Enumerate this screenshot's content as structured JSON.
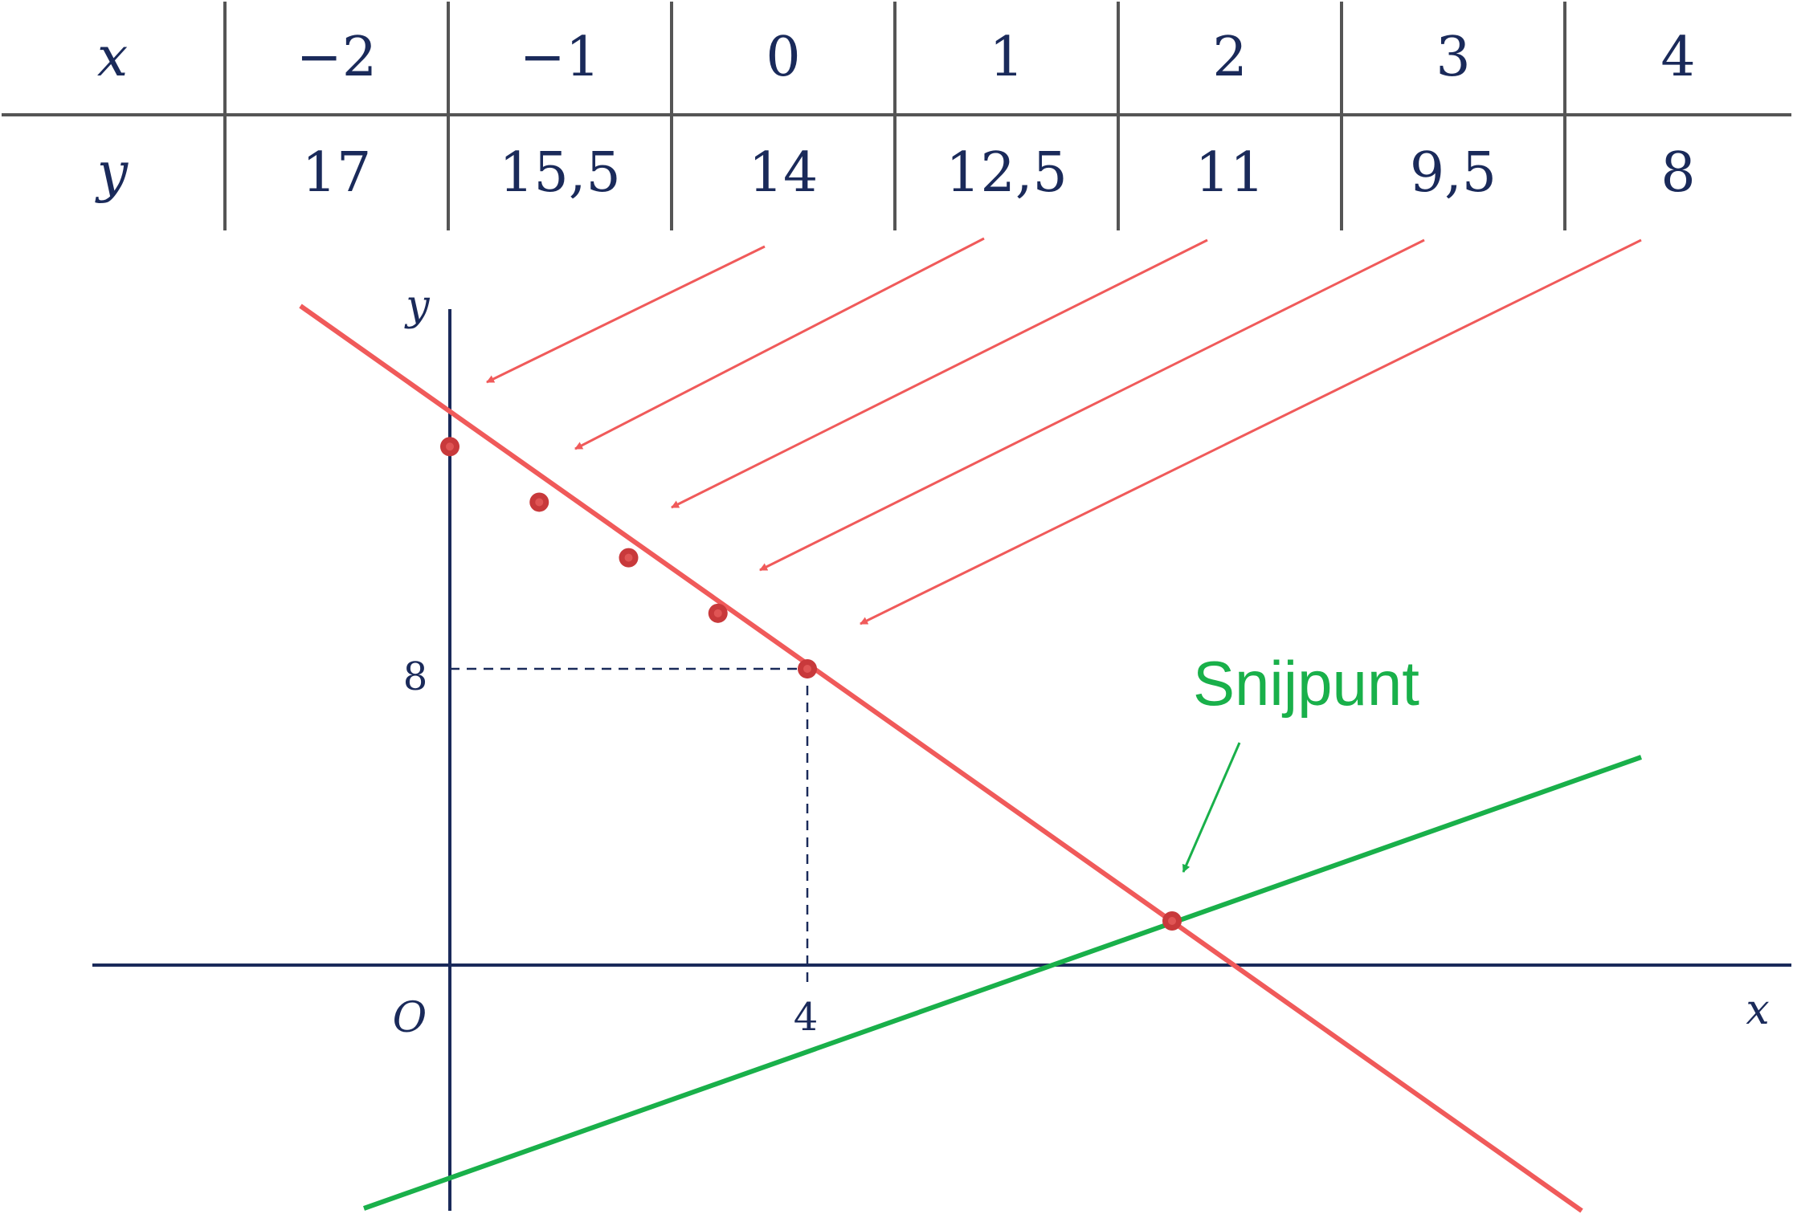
{
  "table": {
    "x_header": "x",
    "y_header": "y",
    "x_values": [
      "−2",
      "−1",
      "0",
      "1",
      "2",
      "3",
      "4"
    ],
    "y_values": [
      "17",
      "15,5",
      "14",
      "12,5",
      "11",
      "9,5",
      "8"
    ]
  },
  "graph": {
    "y_axis_label": "y",
    "x_axis_label": "x",
    "origin_label": "O",
    "y_tick_label": "8",
    "x_tick_label": "4"
  },
  "annotation": {
    "text": "Snijpunt"
  },
  "colors": {
    "axis": "#1a2a5a",
    "table_lines": "#555555",
    "red_line": "#f05a5a",
    "point": "#c8393b",
    "green_line": "#19b04a"
  },
  "chart_data": {
    "type": "line",
    "series": [
      {
        "x": [
          -2,
          -1,
          0,
          1,
          2,
          3,
          4
        ],
        "y": [
          17,
          15.5,
          14,
          12.5,
          11,
          9.5,
          8
        ]
      }
    ]
  }
}
